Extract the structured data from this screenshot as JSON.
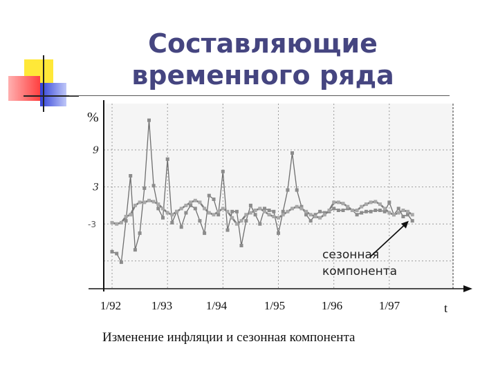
{
  "slide": {
    "title_line1": "Составляющие",
    "title_line2": "временного ряда",
    "caption": "Изменение инфляции и  сезонная компонента",
    "accent_colors": {
      "yellow": "#FFE838",
      "red": "#FF5A5A",
      "blue": "#3D50E0",
      "title": "#454580"
    }
  },
  "chart_data": {
    "type": "line",
    "ylabel": "%",
    "xlabel": "t",
    "y_ticks": [
      "9",
      "3",
      "-3"
    ],
    "y_tick_values": [
      9,
      3,
      -3
    ],
    "x_ticks": [
      "1/92",
      "1/93",
      "1/94",
      "1/95",
      "1/96",
      "1/97"
    ],
    "x_tick_values": [
      1992,
      1993,
      1994,
      1995,
      1996,
      1997
    ],
    "xlim": [
      1991.85,
      1998.15
    ],
    "ylim": [
      -13.5,
      16.5
    ],
    "grid": true,
    "annotation": {
      "text_line1": "сезонная",
      "text_line2": "компонента",
      "arrow_to_x": 1997.35,
      "arrow_to_y": -2.5
    },
    "series": [
      {
        "x": [
          1992.0,
          1992.083,
          1992.167,
          1992.25,
          1992.333,
          1992.417,
          1992.5,
          1992.583,
          1992.667,
          1992.75,
          1992.833,
          1992.917,
          1993.0,
          1993.083,
          1993.167,
          1993.25,
          1993.333,
          1993.417,
          1993.5,
          1993.583,
          1993.667,
          1993.75,
          1993.833,
          1993.917,
          1994.0,
          1994.083,
          1994.167,
          1994.25,
          1994.333,
          1994.417,
          1994.5,
          1994.583,
          1994.667,
          1994.75,
          1994.833,
          1994.917,
          1995.0,
          1995.083,
          1995.167,
          1995.25,
          1995.333,
          1995.417,
          1995.5,
          1995.583,
          1995.667,
          1995.75,
          1995.833,
          1995.917,
          1996.0,
          1996.083,
          1996.167,
          1996.25,
          1996.333,
          1996.417,
          1996.5,
          1996.583,
          1996.667,
          1996.75,
          1996.833,
          1996.917,
          1997.0,
          1997.083,
          1997.167,
          1997.25,
          1997.333,
          1997.417
        ],
        "values": [
          -7.5,
          -7.8,
          -9.2,
          -2.5,
          4.8,
          -7.2,
          -4.5,
          2.8,
          13.8,
          3.2,
          -0.5,
          -2.0,
          7.5,
          -2.8,
          -1.0,
          -3.5,
          -1.2,
          0.0,
          -0.5,
          -2.5,
          -4.5,
          1.6,
          1.0,
          -1.5,
          5.5,
          -4.0,
          -1.0,
          -1.0,
          -6.5,
          -2.5,
          0.0,
          -1.5,
          -3.0,
          -0.5,
          -0.8,
          -1.0,
          -4.5,
          -1.0,
          2.5,
          8.5,
          2.5,
          -0.2,
          -1.5,
          -2.5,
          -1.5,
          -1.0,
          -1.2,
          -1.0,
          -0.5,
          -0.8,
          -0.8,
          -0.5,
          -0.8,
          -1.5,
          -1.2,
          -1.0,
          -1.0,
          -0.8,
          -0.8,
          -1.0,
          0.5,
          -1.5,
          -0.5,
          -1.8,
          -1.5,
          -2.5
        ]
      },
      {
        "x": [
          1992.0,
          1992.083,
          1992.167,
          1992.25,
          1992.333,
          1992.417,
          1992.5,
          1992.583,
          1992.667,
          1992.75,
          1992.833,
          1992.917,
          1993.0,
          1993.083,
          1993.167,
          1993.25,
          1993.333,
          1993.417,
          1993.5,
          1993.583,
          1993.667,
          1993.75,
          1993.833,
          1993.917,
          1994.0,
          1994.083,
          1994.167,
          1994.25,
          1994.333,
          1994.417,
          1994.5,
          1994.583,
          1994.667,
          1994.75,
          1994.833,
          1994.917,
          1995.0,
          1995.083,
          1995.167,
          1995.25,
          1995.333,
          1995.417,
          1995.5,
          1995.583,
          1995.667,
          1995.75,
          1995.833,
          1995.917,
          1996.0,
          1996.083,
          1996.167,
          1996.25,
          1996.333,
          1996.417,
          1996.5,
          1996.583,
          1996.667,
          1996.75,
          1996.833,
          1996.917,
          1997.0,
          1997.083,
          1997.167,
          1997.25,
          1997.333,
          1997.417
        ],
        "values": [
          -2.8,
          -3.0,
          -2.8,
          -1.8,
          -1.5,
          0.0,
          0.5,
          0.5,
          0.8,
          0.6,
          0.2,
          -0.5,
          -1.2,
          -1.5,
          -1.0,
          -0.5,
          0.0,
          0.5,
          0.8,
          0.5,
          -0.5,
          -1.2,
          -1.5,
          -1.0,
          -0.5,
          -1.0,
          -2.0,
          -3.0,
          -2.5,
          -1.5,
          -1.2,
          -0.8,
          -0.5,
          -1.0,
          -1.5,
          -1.8,
          -2.0,
          -1.5,
          -1.0,
          -0.5,
          -0.2,
          -0.5,
          -1.0,
          -1.5,
          -1.8,
          -2.0,
          -1.5,
          -0.8,
          0.5,
          0.5,
          0.3,
          -0.2,
          -0.8,
          -0.8,
          -0.2,
          0.2,
          0.5,
          0.6,
          0.2,
          -0.5,
          -1.2,
          -1.5,
          -1.2,
          -0.8,
          -1.0,
          -1.5
        ]
      }
    ]
  }
}
